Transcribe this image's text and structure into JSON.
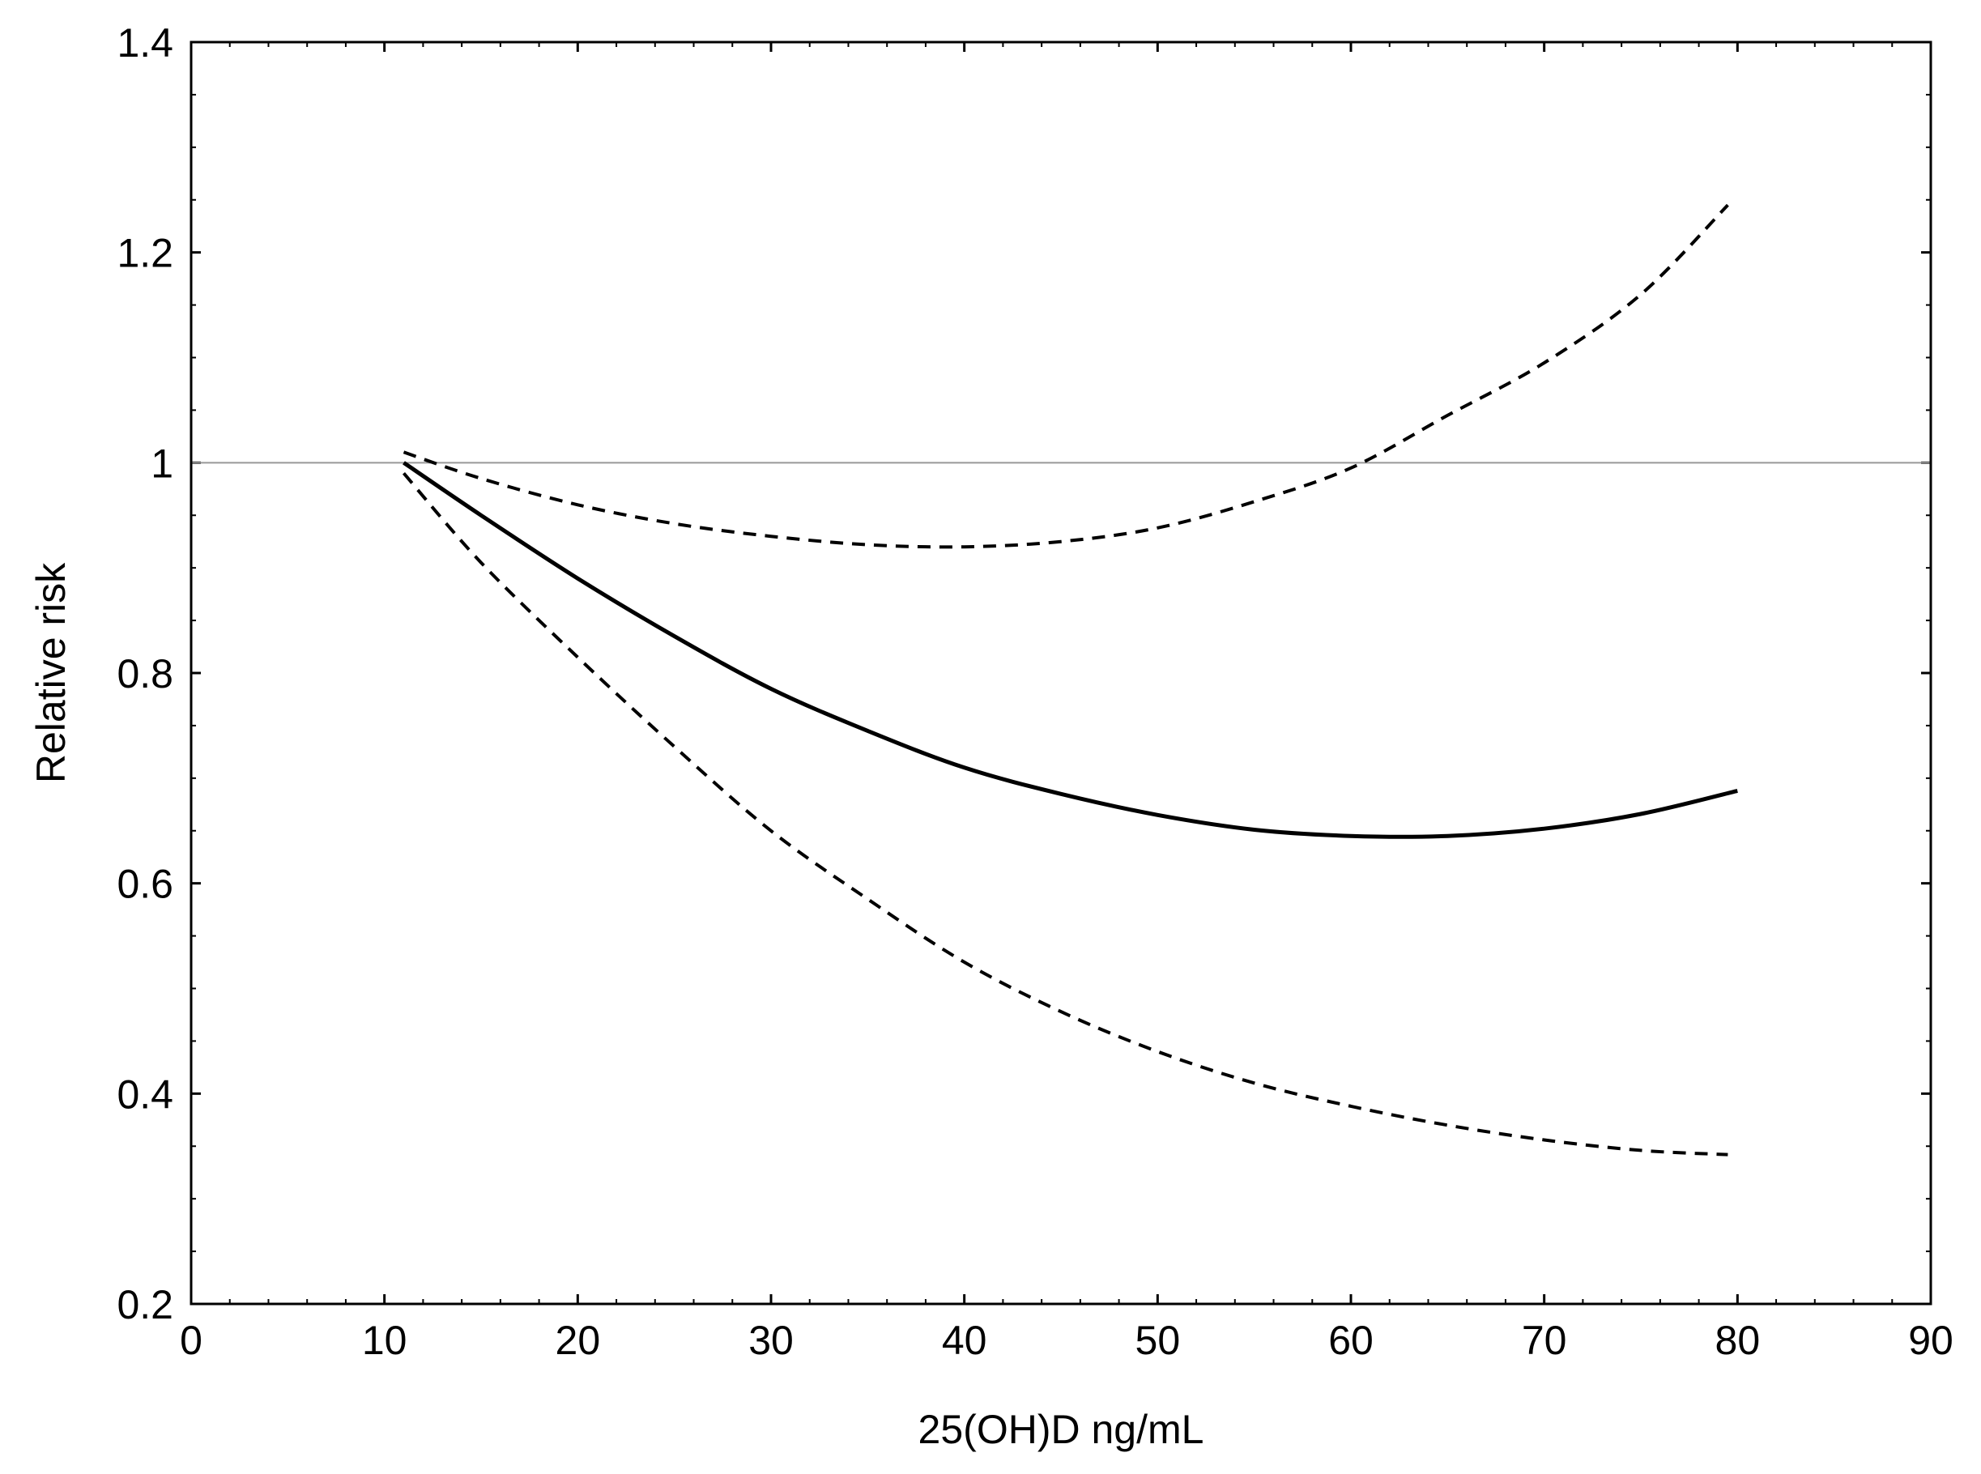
{
  "chart_data": {
    "type": "line",
    "title": "",
    "xlabel": "25(OH)D ng/mL",
    "ylabel": "Relative risk",
    "xlim": [
      0,
      90
    ],
    "ylim": [
      0.2,
      1.4
    ],
    "x_ticks": [
      "0",
      "10",
      "20",
      "30",
      "40",
      "50",
      "60",
      "70",
      "80",
      "90"
    ],
    "y_ticks": [
      "0.2",
      "0.4",
      "0.6",
      "0.8",
      "1",
      "1.2",
      "1.4"
    ],
    "x_minor_step": 2,
    "y_minor_step": 0.05,
    "grid": false,
    "reference_line": {
      "y": 1.0,
      "color": "#999999"
    },
    "series": [
      {
        "style": "solid",
        "color": "#000000",
        "points": [
          [
            11,
            1.0
          ],
          [
            15,
            0.95
          ],
          [
            20,
            0.89
          ],
          [
            25,
            0.835
          ],
          [
            30,
            0.785
          ],
          [
            35,
            0.745
          ],
          [
            40,
            0.71
          ],
          [
            45,
            0.685
          ],
          [
            50,
            0.665
          ],
          [
            55,
            0.651
          ],
          [
            60,
            0.645
          ],
          [
            65,
            0.645
          ],
          [
            70,
            0.652
          ],
          [
            75,
            0.666
          ],
          [
            80,
            0.688
          ]
        ]
      },
      {
        "style": "dashed",
        "color": "#000000",
        "points": [
          [
            11,
            1.01
          ],
          [
            15,
            0.985
          ],
          [
            20,
            0.96
          ],
          [
            25,
            0.942
          ],
          [
            30,
            0.93
          ],
          [
            35,
            0.922
          ],
          [
            40,
            0.92
          ],
          [
            45,
            0.925
          ],
          [
            50,
            0.938
          ],
          [
            55,
            0.963
          ],
          [
            60,
            0.995
          ],
          [
            65,
            1.045
          ],
          [
            70,
            1.095
          ],
          [
            75,
            1.16
          ],
          [
            79.5,
            1.245
          ]
        ]
      },
      {
        "style": "dashed",
        "color": "#000000",
        "points": [
          [
            11,
            0.99
          ],
          [
            15,
            0.905
          ],
          [
            20,
            0.815
          ],
          [
            25,
            0.73
          ],
          [
            30,
            0.65
          ],
          [
            35,
            0.585
          ],
          [
            40,
            0.525
          ],
          [
            45,
            0.478
          ],
          [
            50,
            0.44
          ],
          [
            55,
            0.41
          ],
          [
            60,
            0.388
          ],
          [
            65,
            0.37
          ],
          [
            70,
            0.356
          ],
          [
            75,
            0.346
          ],
          [
            79.5,
            0.342
          ]
        ]
      }
    ]
  }
}
